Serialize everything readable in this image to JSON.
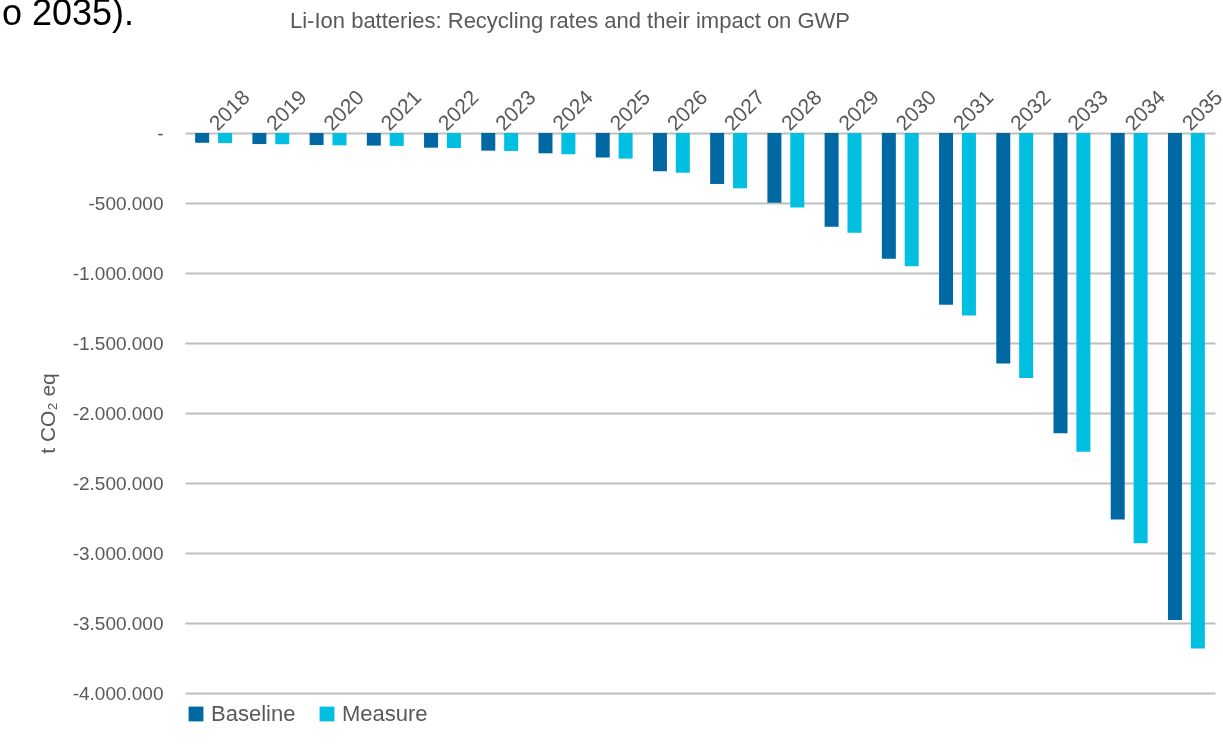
{
  "chart_data": {
    "type": "bar",
    "title": "Li-Ion batteries: Recycling rates and their impact on GWP",
    "ylabel": "t CO₂ eq",
    "annotations": [
      "o 2035)."
    ],
    "categories": [
      "2018",
      "2019",
      "2020",
      "2021",
      "2022",
      "2023",
      "2024",
      "2025",
      "2026",
      "2027",
      "2028",
      "2029",
      "2030",
      "2031",
      "2032",
      "2033",
      "2034",
      "2035"
    ],
    "series": [
      {
        "name": "Baseline",
        "color": "#0069a3",
        "values": [
          -70000,
          -79000,
          -86000,
          -90000,
          -105000,
          -126000,
          -145000,
          -175000,
          -273000,
          -364000,
          -499000,
          -670000,
          -899000,
          -1226000,
          -1646000,
          -2145000,
          -2760000,
          -3479000
        ]
      },
      {
        "name": "Measure",
        "color": "#00bfe0",
        "values": [
          -72000,
          -80000,
          -88000,
          -92000,
          -107000,
          -128000,
          -152000,
          -183000,
          -284000,
          -395000,
          -533000,
          -713000,
          -951000,
          -1303000,
          -1750000,
          -2276000,
          -2931000,
          -3683000
        ]
      }
    ],
    "ylim": [
      -4000000,
      0
    ],
    "yticks": [
      {
        "value": 0,
        "label": "-"
      },
      {
        "value": -500000,
        "label": "-500.000"
      },
      {
        "value": -1000000,
        "label": "-1.000.000"
      },
      {
        "value": -1500000,
        "label": "-1.500.000"
      },
      {
        "value": -2000000,
        "label": "-2.000.000"
      },
      {
        "value": -2500000,
        "label": "-2.500.000"
      },
      {
        "value": -3000000,
        "label": "-3.000.000"
      },
      {
        "value": -3500000,
        "label": "-3.500.000"
      },
      {
        "value": -4000000,
        "label": "-4.000.000"
      }
    ],
    "grid": "y",
    "legend": "bottom"
  }
}
